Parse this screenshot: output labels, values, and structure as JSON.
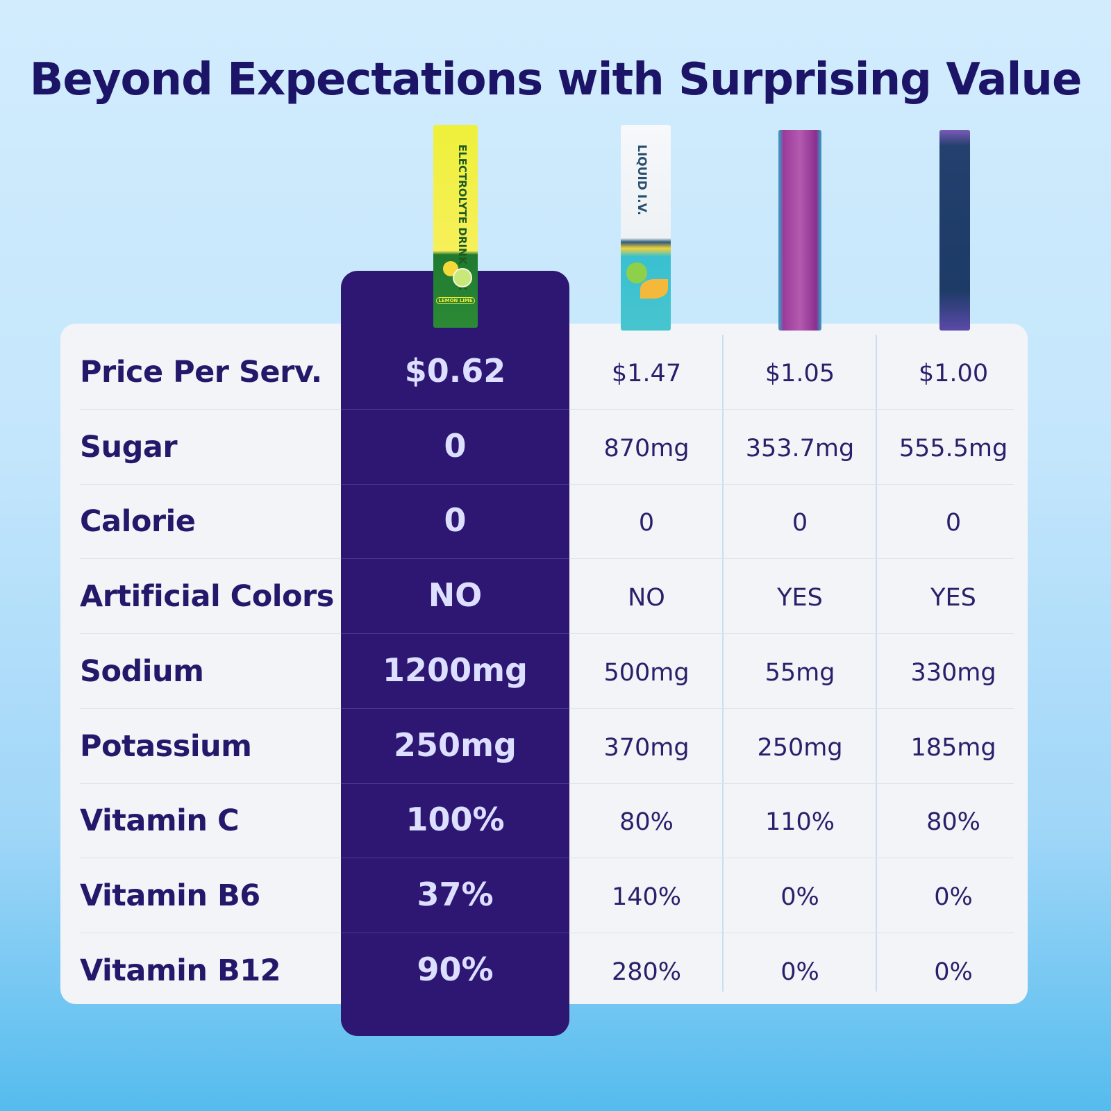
{
  "title": "Beyond Expectations with Surprising Value",
  "products": [
    {
      "packet_text": "ELECTROLYTE DRINK MIX",
      "flavor": "LEMON LIME",
      "color": "#f2ec3a"
    },
    {
      "packet_text": "LIQUID I.V.",
      "color": "#f5f7f9"
    },
    {
      "color": "#8a2f8f"
    },
    {
      "color": "#1f3d6a"
    }
  ],
  "rows": [
    {
      "label": "Price Per Serv.",
      "values": [
        "$0.62",
        "$1.47",
        "$1.05",
        "$1.00"
      ]
    },
    {
      "label": "Sugar",
      "values": [
        "0",
        "870mg",
        "353.7mg",
        "555.5mg"
      ]
    },
    {
      "label": "Calorie",
      "values": [
        "0",
        "0",
        "0",
        "0"
      ]
    },
    {
      "label": "Artificial Colors",
      "values": [
        "NO",
        "NO",
        "YES",
        "YES"
      ]
    },
    {
      "label": "Sodium",
      "values": [
        "1200mg",
        "500mg",
        "55mg",
        "330mg"
      ]
    },
    {
      "label": "Potassium",
      "values": [
        "250mg",
        "370mg",
        "250mg",
        "185mg"
      ]
    },
    {
      "label": "Vitamin C",
      "values": [
        "100%",
        "80%",
        "110%",
        "80%"
      ]
    },
    {
      "label": "Vitamin B6",
      "values": [
        "37%",
        "140%",
        "0%",
        "0%"
      ]
    },
    {
      "label": "Vitamin B12",
      "values": [
        "90%",
        "280%",
        "0%",
        "0%"
      ]
    }
  ],
  "colors": {
    "highlight": "#2e1772",
    "title": "#1c1466"
  }
}
